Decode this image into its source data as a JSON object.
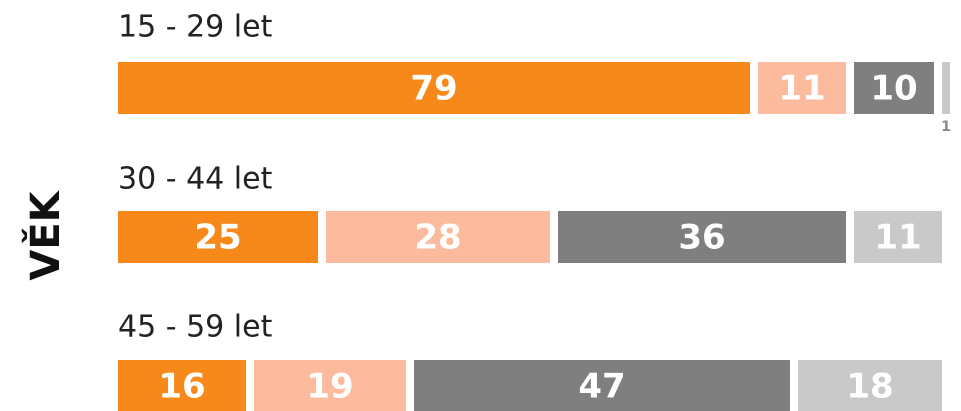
{
  "chart_data": {
    "type": "stacked_bar_horizontal",
    "axis_label": "VĚK",
    "categories": [
      "15 - 29 let",
      "30 - 44 let",
      "45 - 59 let"
    ],
    "series": [
      {
        "color": "#f7891b",
        "values": [
          79,
          25,
          16
        ]
      },
      {
        "color": "#fdbb9d",
        "values": [
          11,
          28,
          19
        ]
      },
      {
        "color": "#7f7f7f",
        "values": [
          10,
          36,
          47
        ]
      },
      {
        "color": "#c9c9c9",
        "values": [
          1,
          11,
          18
        ]
      }
    ]
  }
}
